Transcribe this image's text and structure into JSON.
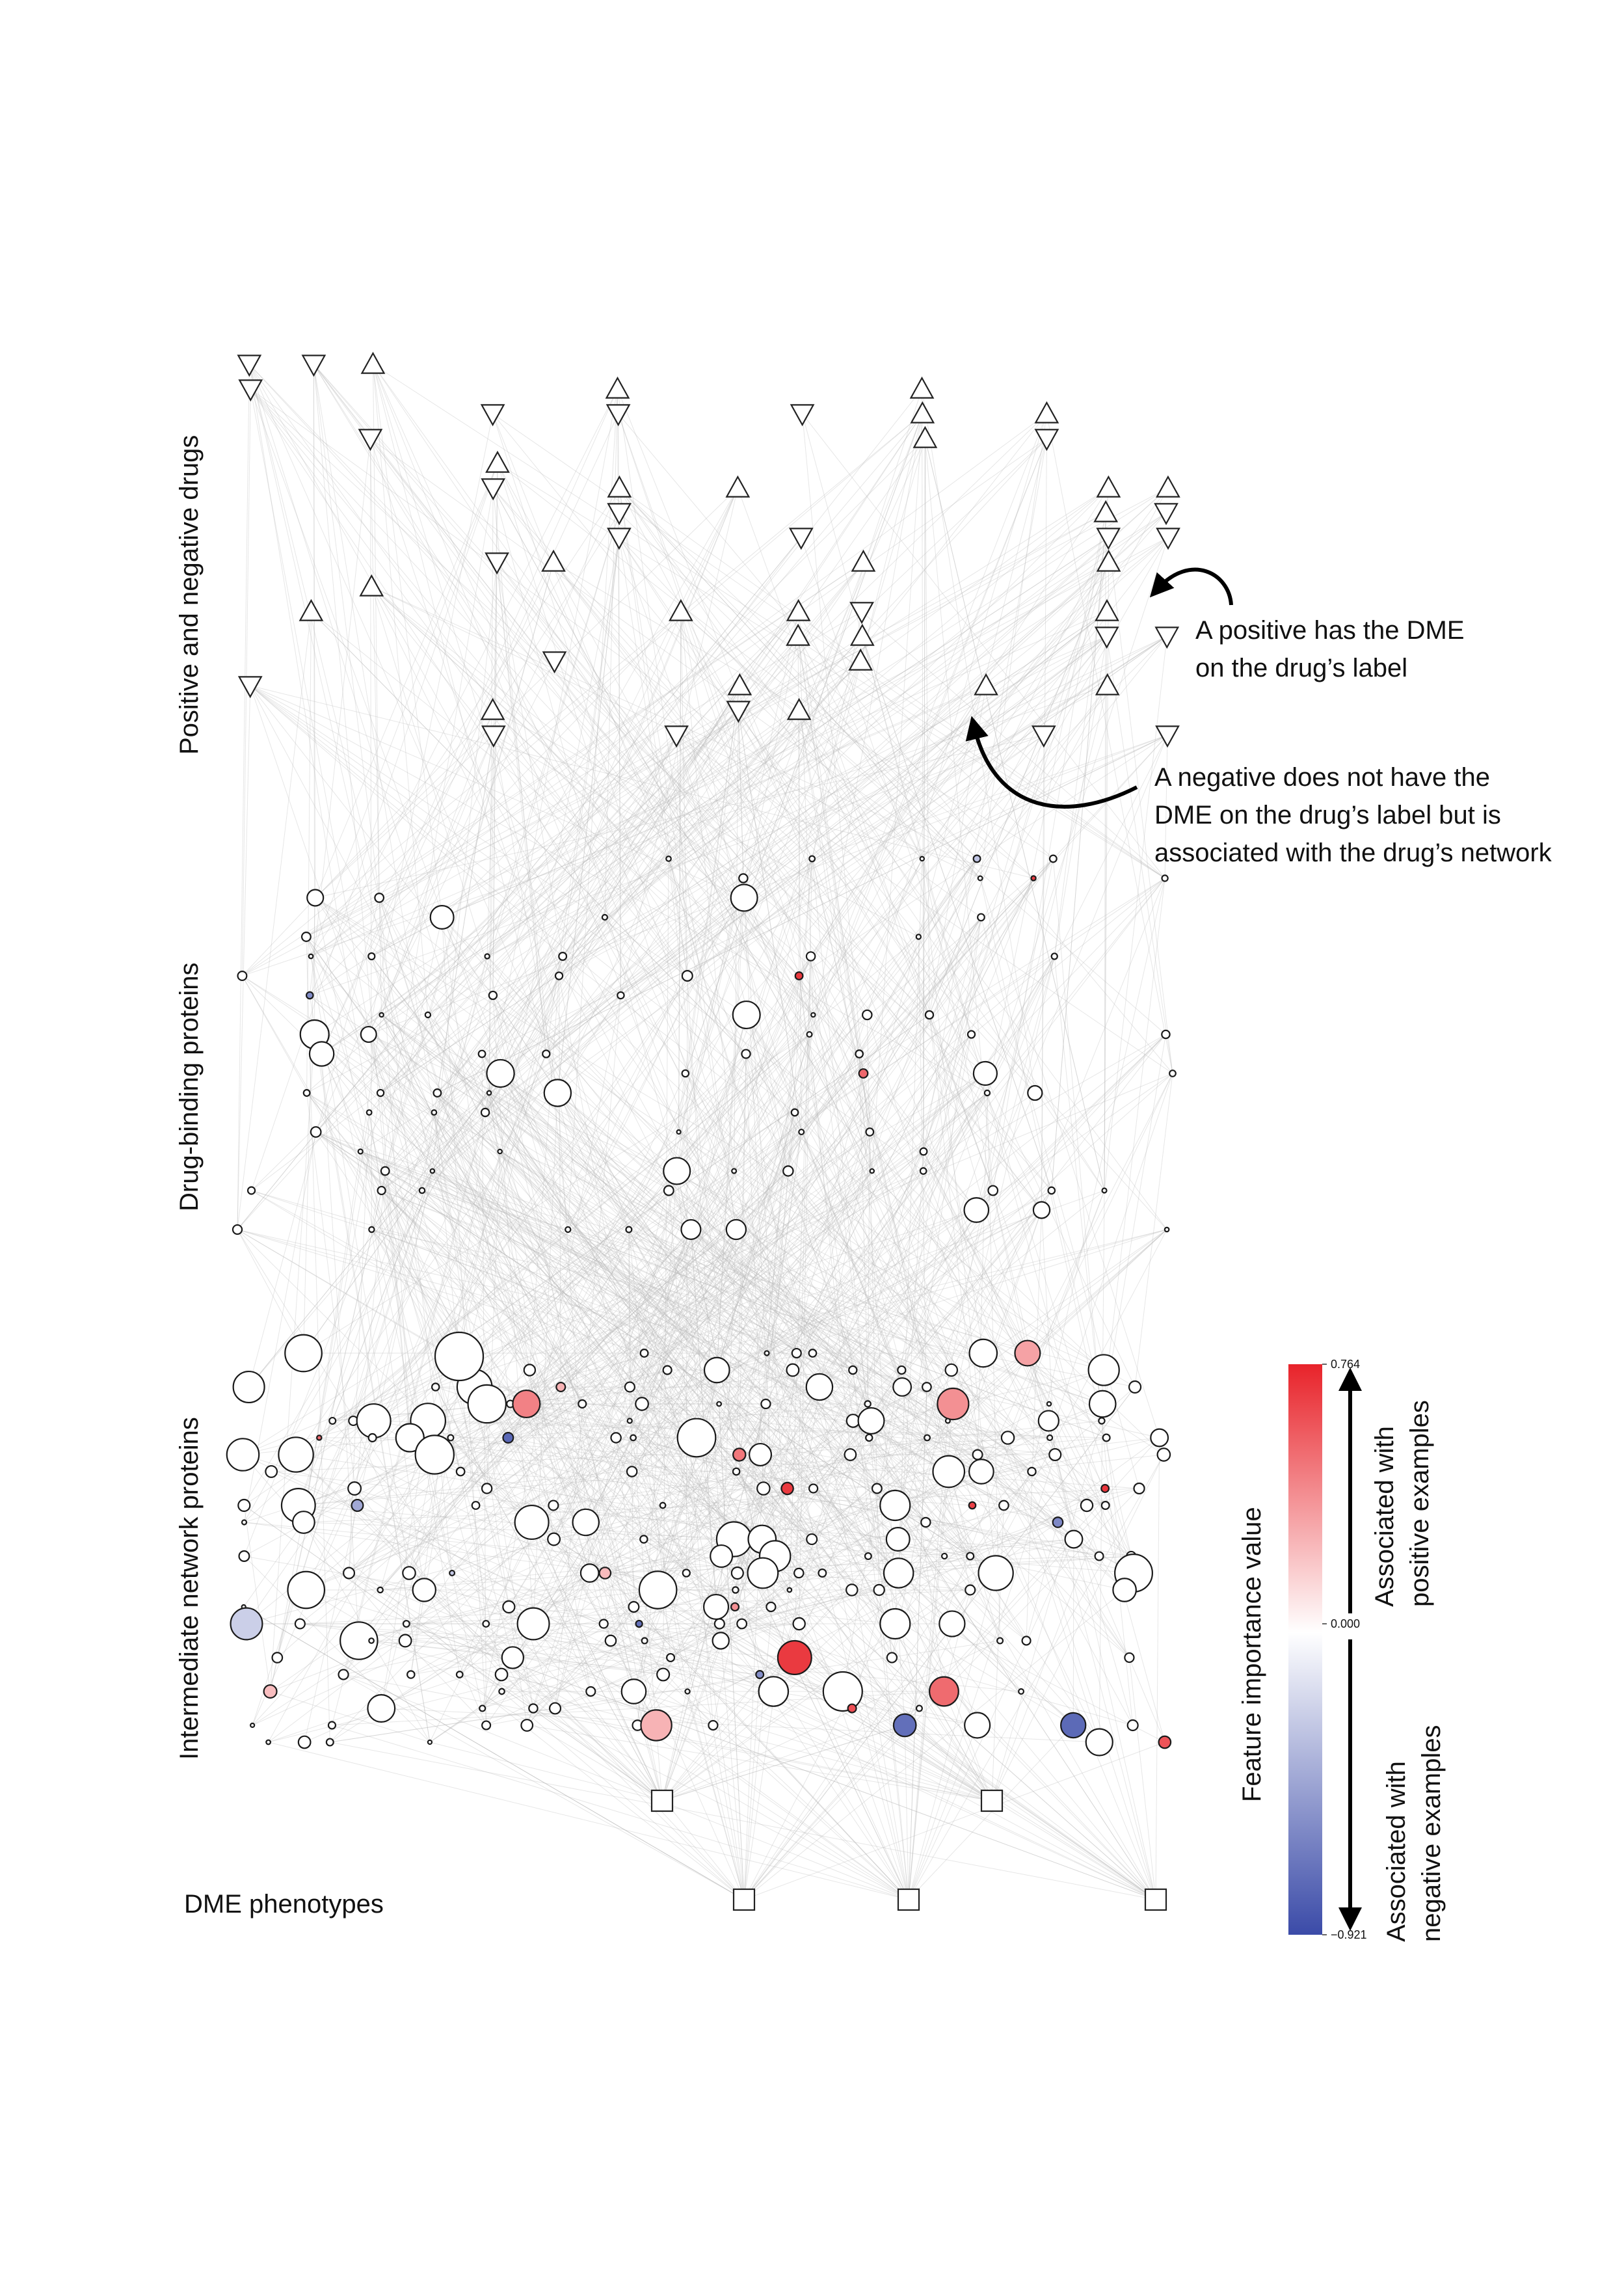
{
  "layers": {
    "drugs": "Positive and negative drugs",
    "binding": "Drug-binding proteins",
    "intermediate": "Intermediate network proteins",
    "phenotypes": "DME phenotypes"
  },
  "annotations": {
    "positive": [
      "A positive has the DME",
      "on the drug’s label"
    ],
    "negative": [
      "A negative does not have the",
      "DME on the drug’s label but is",
      "associated with the drug’s network"
    ]
  },
  "colorbar": {
    "title": "Feature importance value",
    "max_label": "0.764",
    "mid_label": "0.000",
    "min_label": "−0.921",
    "max": 0.764,
    "min": -0.921,
    "positive_text": [
      "Associated with",
      "positive examples"
    ],
    "negative_text": [
      "Associated with",
      "negative examples"
    ],
    "colors": {
      "positive": "#e8232a",
      "zero": "#ffffff",
      "negative": "#3b4ba8"
    }
  }
}
